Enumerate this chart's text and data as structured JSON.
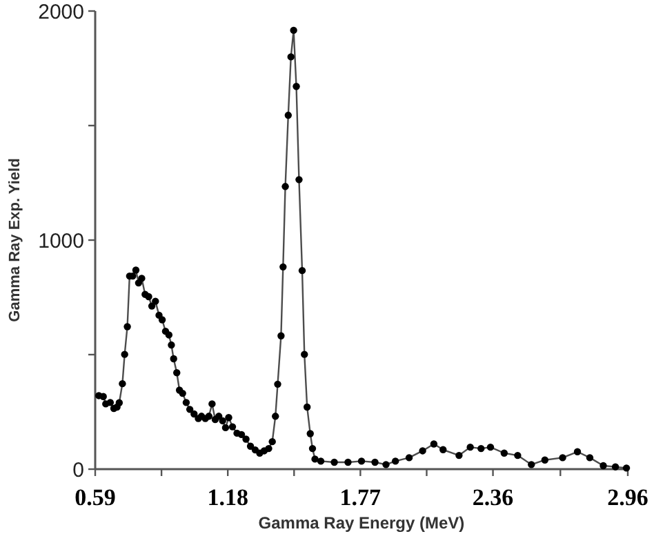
{
  "chart_data": {
    "type": "line",
    "xlabel": "Gamma Ray Energy  (MeV)",
    "ylabel": "Gamma Ray Exp. Yield",
    "x": [
      0.606,
      0.626,
      0.637,
      0.657,
      0.673,
      0.687,
      0.697,
      0.711,
      0.721,
      0.733,
      0.743,
      0.757,
      0.771,
      0.783,
      0.797,
      0.812,
      0.828,
      0.842,
      0.858,
      0.874,
      0.888,
      0.903,
      0.918,
      0.929,
      0.939,
      0.953,
      0.965,
      0.979,
      0.995,
      1.011,
      1.03,
      1.049,
      1.063,
      1.08,
      1.096,
      1.11,
      1.124,
      1.14,
      1.157,
      1.17,
      1.184,
      1.201,
      1.221,
      1.241,
      1.261,
      1.281,
      1.302,
      1.322,
      1.342,
      1.362,
      1.378,
      1.392,
      1.402,
      1.417,
      1.426,
      1.436,
      1.449,
      1.461,
      1.473,
      1.485,
      1.497,
      1.511,
      1.521,
      1.533,
      1.547,
      1.557,
      1.568,
      1.594,
      1.654,
      1.715,
      1.775,
      1.835,
      1.884,
      1.926,
      1.987,
      2.047,
      2.097,
      2.138,
      2.209,
      2.259,
      2.307,
      2.349,
      2.41,
      2.47,
      2.531,
      2.591,
      2.67,
      2.736,
      2.791,
      2.851,
      2.905,
      2.954
    ],
    "series": [
      {
        "color": "#000000",
        "values": [
          321,
          317,
          285,
          291,
          265,
          271,
          290,
          373,
          501,
          622,
          843,
          843,
          869,
          813,
          833,
          763,
          753,
          712,
          733,
          672,
          652,
          602,
          586,
          542,
          482,
          421,
          345,
          331,
          291,
          261,
          241,
          221,
          231,
          221,
          231,
          285,
          217,
          231,
          211,
          181,
          225,
          185,
          157,
          151,
          131,
          100,
          84,
          70,
          80,
          90,
          120,
          231,
          371,
          582,
          883,
          1234,
          1545,
          1800,
          1916,
          1671,
          1264,
          867,
          501,
          271,
          155,
          90,
          44,
          35,
          30,
          30,
          35,
          30,
          20,
          35,
          50,
          80,
          110,
          85,
          60,
          96,
          90,
          96,
          70,
          60,
          20,
          40,
          50,
          76,
          50,
          15,
          10,
          5
        ]
      }
    ],
    "xlim": [
      0.59,
      2.96
    ],
    "xticks": [
      0.59,
      {
        "value": 0.885,
        "label": null
      },
      1.18,
      {
        "value": 1.475,
        "label": null
      },
      1.77,
      {
        "value": 2.065,
        "label": null
      },
      2.36,
      {
        "value": 2.66,
        "label": null
      },
      2.96
    ],
    "ylim": [
      0,
      2000
    ],
    "yticks": [
      0,
      {
        "value": 500,
        "label": null
      },
      1000,
      {
        "value": 1500,
        "label": null
      },
      2000
    ],
    "marker": "circle",
    "line_style": "solid"
  }
}
